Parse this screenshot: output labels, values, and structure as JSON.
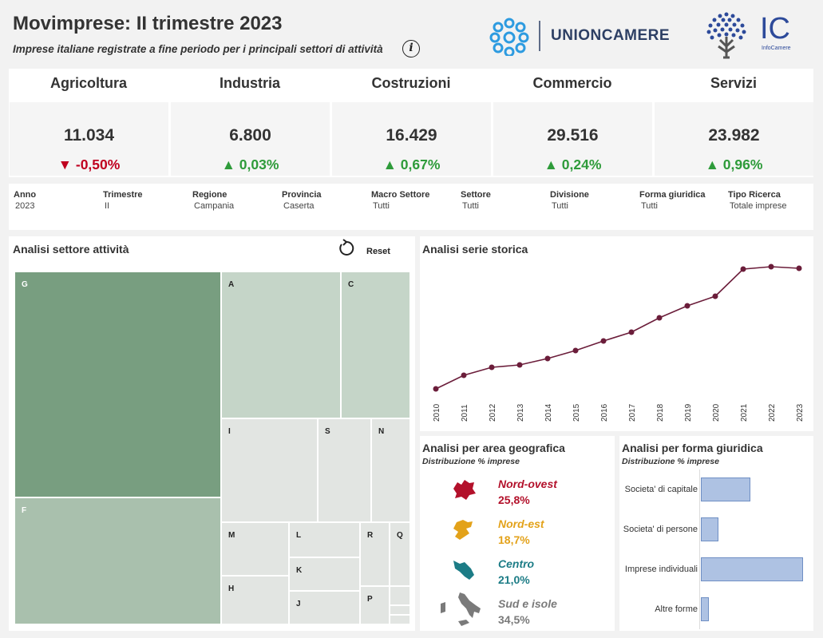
{
  "header": {
    "title": "Movimprese: II trimestre 2023",
    "subtitle": "Imprese italiane registrate a fine periodo per i principali settori di attività",
    "info_icon": "i",
    "logo_unioncamere": "UNIONCAMERE",
    "logo_ic": "IC",
    "logo_ic_caption": "InfoCamere"
  },
  "kpis": [
    {
      "name": "Agricoltura",
      "value": "11.034",
      "delta": "-0,50%",
      "trend": "down"
    },
    {
      "name": "Industria",
      "value": "6.800",
      "delta": "0,03%",
      "trend": "up"
    },
    {
      "name": "Costruzioni",
      "value": "16.429",
      "delta": "0,67%",
      "trend": "up"
    },
    {
      "name": "Commercio",
      "value": "29.516",
      "delta": "0,24%",
      "trend": "up"
    },
    {
      "name": "Servizi",
      "value": "23.982",
      "delta": "0,96%",
      "trend": "up"
    }
  ],
  "colors": {
    "down": "#c00020",
    "up": "#2e9b3a",
    "line": "#6b1d3a",
    "tree_dark": "#789e80",
    "tree_mid": "#a9c0ad",
    "tree_light": "#c5d5c8",
    "tree_pale": "#e2e5e2",
    "nord_ovest": "#b3112b",
    "nord_est": "#e3a21a",
    "centro": "#1c7c86",
    "sud": "#7a7a7a",
    "bar_fill": "#aec2e3"
  },
  "filters": [
    {
      "label": "Anno",
      "value": "2023"
    },
    {
      "label": "Trimestre",
      "value": "II"
    },
    {
      "label": "Regione",
      "value": "Campania"
    },
    {
      "label": "Provincia",
      "value": "Caserta"
    },
    {
      "label": "Macro Settore",
      "value": "Tutti"
    },
    {
      "label": "Settore",
      "value": "Tutti"
    },
    {
      "label": "Divisione",
      "value": "Tutti"
    },
    {
      "label": "Forma giuridica",
      "value": "Tutti"
    },
    {
      "label": "Tipo Ricerca",
      "value": "Totale imprese"
    }
  ],
  "treemap": {
    "title": "Analisi settore attività",
    "reset_label": "Reset",
    "reset_icon": "reset-icon",
    "tiles": [
      "G",
      "F",
      "A",
      "C",
      "I",
      "S",
      "N",
      "M",
      "L",
      "R",
      "Q",
      "K",
      "H",
      "J",
      "P"
    ]
  },
  "series": {
    "title": "Analisi serie storica"
  },
  "geo": {
    "title": "Analisi per area geografica",
    "subtitle": "Distribuzione % imprese",
    "areas": [
      {
        "name": "Nord-ovest",
        "value": "25,8%",
        "icon": "nord-ovest-map-icon"
      },
      {
        "name": "Nord-est",
        "value": "18,7%",
        "icon": "nord-est-map-icon"
      },
      {
        "name": "Centro",
        "value": "21,0%",
        "icon": "centro-map-icon"
      },
      {
        "name": "Sud e isole",
        "value": "34,5%",
        "icon": "sud-isole-map-icon"
      }
    ]
  },
  "forma": {
    "title": "Analisi per forma giuridica",
    "subtitle": "Distribuzione % imprese"
  },
  "chart_data": [
    {
      "type": "line",
      "title": "Analisi serie storica",
      "x": [
        "2010",
        "2011",
        "2012",
        "2013",
        "2014",
        "2015",
        "2016",
        "2017",
        "2018",
        "2019",
        "2020",
        "2021",
        "2022",
        "2023"
      ],
      "series": [
        {
          "values": [
            0,
            17,
            27,
            30,
            38,
            48,
            60,
            71,
            89,
            104,
            116,
            150,
            153,
            151
          ]
        }
      ],
      "y_axis": "hidden",
      "grid": false
    },
    {
      "type": "bar",
      "orientation": "horizontal",
      "title": "Analisi per forma giuridica",
      "categories": [
        "Societa' di capitale",
        "Societa' di persone",
        "Imprese individuali",
        "Altre forme"
      ],
      "values": [
        27,
        9.5,
        56,
        4.5
      ],
      "xlim": [
        0,
        58
      ],
      "y_axis": "hidden"
    },
    {
      "type": "heatmap",
      "variant": "treemap",
      "title": "Analisi settore attività",
      "categories": [
        "G",
        "F",
        "A",
        "C",
        "I",
        "S",
        "N",
        "M",
        "L",
        "R",
        "Q",
        "K",
        "H",
        "J",
        "P"
      ],
      "values": [
        28.3,
        20.0,
        10.3,
        6.7,
        7.4,
        3.8,
        3.1,
        2.2,
        2.3,
        1.0,
        0.7,
        1.5,
        1.5,
        1.5,
        0.7
      ],
      "shades": [
        "dark",
        "mid",
        "light",
        "light",
        "pale",
        "pale",
        "pale",
        "pale",
        "pale",
        "pale",
        "pale",
        "pale",
        "pale",
        "pale",
        "pale"
      ]
    }
  ]
}
